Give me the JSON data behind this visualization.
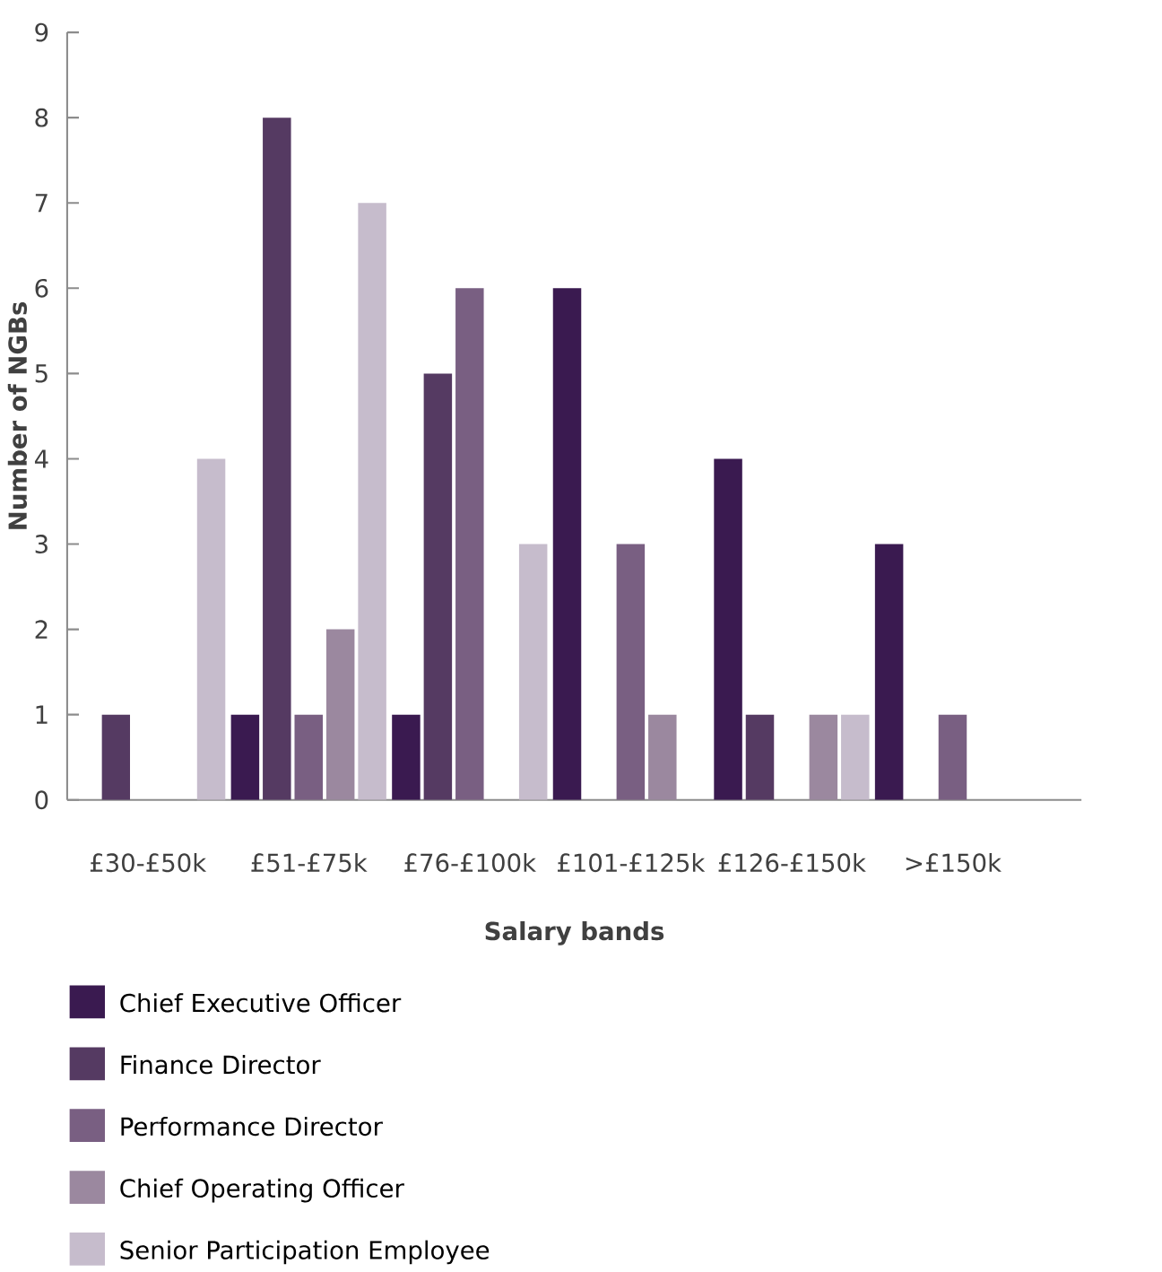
{
  "chart_data": {
    "type": "bar",
    "xlabel": "Salary bands",
    "ylabel": "Number of NGBs",
    "categories": [
      "£30-£50k",
      "£51-£75k",
      "£76-£100k",
      "£101-£125k",
      "£126-£150k",
      ">£150k"
    ],
    "series": [
      {
        "name": "Chief Executive Officer",
        "color": "#3a1a50",
        "values": [
          0,
          1,
          1,
          6,
          4,
          3
        ]
      },
      {
        "name": "Finance Director",
        "color": "#553a62",
        "values": [
          1,
          8,
          5,
          0,
          1,
          0
        ]
      },
      {
        "name": "Performance Director",
        "color": "#795f82",
        "values": [
          0,
          1,
          6,
          3,
          0,
          1
        ]
      },
      {
        "name": "Chief Operating Officer",
        "color": "#9b889f",
        "values": [
          0,
          2,
          0,
          1,
          1,
          0
        ]
      },
      {
        "name": "Senior Participation Employee",
        "color": "#c6bccc",
        "values": [
          4,
          7,
          3,
          0,
          1,
          0
        ]
      }
    ],
    "ylim": [
      0,
      9
    ],
    "yticks": [
      0,
      1,
      2,
      3,
      4,
      5,
      6,
      7,
      8,
      9
    ],
    "legend": "bottom"
  }
}
